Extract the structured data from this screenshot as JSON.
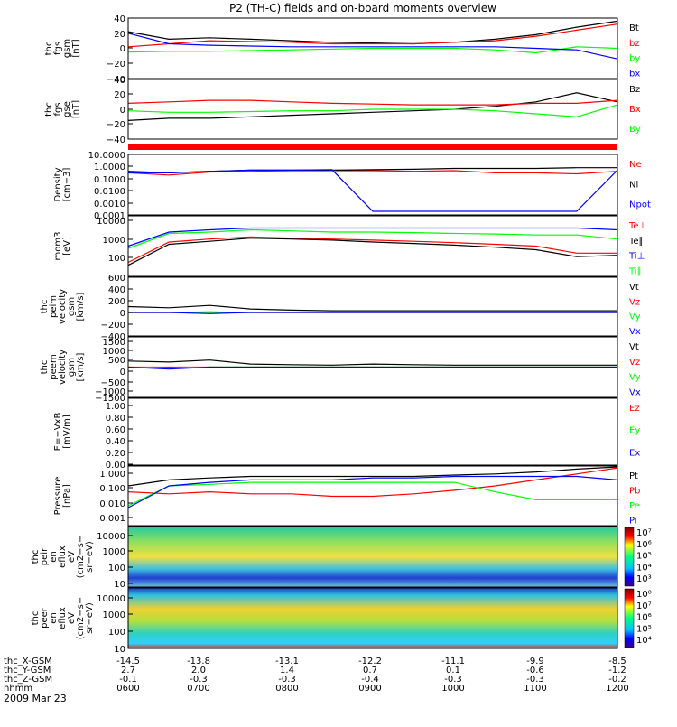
{
  "title": "P2 (TH-C) fields and on-board moments overview",
  "date_label": "2009 Mar 23",
  "footer": {
    "rows": [
      {
        "label": "thc_X-GSM",
        "values": [
          "-14.5",
          "-13.8",
          "-13.1",
          "-12.2",
          "-11.1",
          "-9.9",
          "-8.5"
        ]
      },
      {
        "label": "thc_Y-GSM",
        "values": [
          "2.7",
          "2.0",
          "1.4",
          "0.7",
          "0.1",
          "-0.6",
          "-1.2"
        ]
      },
      {
        "label": "thc_Z-GSM",
        "values": [
          "-0.1",
          "-0.3",
          "-0.3",
          "-0.4",
          "-0.3",
          "-0.3",
          "-0.2"
        ]
      },
      {
        "label": "hhmm",
        "values": [
          "0600",
          "0700",
          "0800",
          "0900",
          "1000",
          "1100",
          "1200"
        ]
      }
    ]
  },
  "colors": {
    "black": "#000000",
    "red": "#ff0000",
    "green": "#00ff00",
    "blue": "#0000ff",
    "flag_bar": "#ff0000"
  },
  "chart_data": [
    {
      "type": "line",
      "ylabel": [
        "thc",
        "fgs",
        "gsm",
        "[nT]"
      ],
      "yticks": [
        "40",
        "20",
        "0",
        "−20",
        "−40"
      ],
      "ylim": [
        -40,
        40
      ],
      "x": [
        "0600",
        "0630",
        "0700",
        "0730",
        "0800",
        "0830",
        "0900",
        "0930",
        "1000",
        "1030",
        "1100",
        "1130",
        "1200"
      ],
      "series": [
        {
          "name": "Bt",
          "color": "black",
          "values": [
            22,
            12,
            14,
            12,
            10,
            8,
            7,
            6,
            8,
            12,
            18,
            28,
            36
          ]
        },
        {
          "name": "bz",
          "color": "red",
          "values": [
            2,
            6,
            10,
            9,
            8,
            6,
            6,
            6,
            8,
            10,
            16,
            24,
            32
          ]
        },
        {
          "name": "by",
          "color": "green",
          "values": [
            -5,
            -4,
            -4,
            -3,
            -2,
            -1,
            0,
            0,
            0,
            -2,
            -6,
            2,
            0
          ]
        },
        {
          "name": "bx",
          "color": "blue",
          "values": [
            20,
            6,
            4,
            3,
            2,
            2,
            2,
            2,
            2,
            2,
            0,
            -2,
            -14
          ]
        }
      ]
    },
    {
      "type": "line",
      "ylabel": [
        "thc",
        "fgs",
        "gse",
        "[nT]"
      ],
      "yticks": [
        "40",
        "20",
        "0",
        "−20",
        "−40"
      ],
      "ylim": [
        -40,
        40
      ],
      "x": [
        "0600",
        "0630",
        "0700",
        "0730",
        "0800",
        "0830",
        "0900",
        "0930",
        "1000",
        "1030",
        "1100",
        "1130",
        "1200"
      ],
      "series": [
        {
          "name": "Bz",
          "color": "black",
          "values": [
            -15,
            -12,
            -12,
            -10,
            -8,
            -6,
            -4,
            -2,
            0,
            4,
            10,
            22,
            10
          ]
        },
        {
          "name": "Bx",
          "color": "red",
          "values": [
            8,
            10,
            12,
            12,
            10,
            8,
            7,
            6,
            6,
            6,
            8,
            8,
            12
          ]
        },
        {
          "name": "By",
          "color": "green",
          "values": [
            -2,
            -4,
            -4,
            -3,
            -2,
            -2,
            0,
            0,
            0,
            -2,
            -6,
            -10,
            6
          ]
        }
      ]
    },
    {
      "type": "line",
      "log": true,
      "ylabel": [
        "Density",
        "[cm−3]"
      ],
      "yticks": [
        "10.0000",
        "1.0000",
        "0.1000",
        "0.0100",
        "0.0010",
        "0.0001"
      ],
      "ylim": [
        0.0001,
        10
      ],
      "x": [
        "0600",
        "0630",
        "0700",
        "0730",
        "0800",
        "0830",
        "0900",
        "0930",
        "1000",
        "1030",
        "1100",
        "1130",
        "1200"
      ],
      "series": [
        {
          "name": "Ne",
          "color": "red",
          "values": [
            0.3,
            0.2,
            0.35,
            0.4,
            0.45,
            0.45,
            0.45,
            0.4,
            0.45,
            0.3,
            0.3,
            0.25,
            0.4
          ]
        },
        {
          "name": "Ni",
          "color": "black",
          "values": [
            0.4,
            0.3,
            0.4,
            0.5,
            0.5,
            0.5,
            0.55,
            0.6,
            0.7,
            0.7,
            0.7,
            0.8,
            0.8
          ]
        },
        {
          "name": "Npot",
          "color": "blue",
          "values": [
            0.3,
            0.3,
            0.4,
            0.5,
            0.5,
            0.55,
            0.0002,
            0.0002,
            0.0002,
            0.0002,
            0.0002,
            0.0002,
            0.5
          ]
        }
      ]
    },
    {
      "type": "line",
      "log": true,
      "ylabel": [
        "mom3",
        "[eV]"
      ],
      "yticks": [
        "10000",
        "1000",
        "100"
      ],
      "ylim": [
        50,
        20000
      ],
      "x": [
        "0600",
        "0630",
        "0700",
        "0730",
        "0800",
        "0830",
        "0900",
        "0930",
        "1000",
        "1030",
        "1100",
        "1130",
        "1200"
      ],
      "series": [
        {
          "name": "Te⊥",
          "color": "red",
          "values": [
            200,
            1500,
            2000,
            2500,
            2200,
            2000,
            1800,
            1600,
            1400,
            1200,
            1000,
            500,
            500
          ]
        },
        {
          "name": "Te∥",
          "color": "black",
          "values": [
            150,
            1200,
            1600,
            2200,
            2000,
            1800,
            1500,
            1300,
            1100,
            900,
            700,
            350,
            400
          ]
        },
        {
          "name": "Ti⊥",
          "color": "blue",
          "values": [
            1000,
            4000,
            5000,
            6000,
            6000,
            6000,
            6000,
            6000,
            6000,
            6000,
            6000,
            6000,
            5000
          ]
        },
        {
          "name": "Ti∥",
          "color": "green",
          "values": [
            800,
            3500,
            4000,
            5000,
            4500,
            4000,
            4000,
            3800,
            3500,
            3300,
            3000,
            3000,
            2000
          ]
        }
      ]
    },
    {
      "type": "line",
      "ylabel": [
        "thc",
        "peim",
        "velocity",
        "gsm",
        "[km/s]"
      ],
      "yticks": [
        "600",
        "400",
        "200",
        "0",
        "−200",
        "−400"
      ],
      "ylim": [
        -400,
        600
      ],
      "x": [
        "0600",
        "0630",
        "0700",
        "0730",
        "0800",
        "0830",
        "0900",
        "0930",
        "1000",
        "1030",
        "1100",
        "1130",
        "1200"
      ],
      "series": [
        {
          "name": "Vt",
          "color": "black",
          "values": [
            100,
            80,
            120,
            60,
            40,
            30,
            30,
            30,
            30,
            30,
            30,
            30,
            30
          ]
        },
        {
          "name": "Vz",
          "color": "red",
          "values": [
            0,
            0,
            10,
            0,
            0,
            0,
            0,
            0,
            0,
            0,
            0,
            0,
            0
          ]
        },
        {
          "name": "Vy",
          "color": "green",
          "values": [
            0,
            0,
            0,
            0,
            0,
            0,
            0,
            0,
            0,
            0,
            0,
            0,
            0
          ]
        },
        {
          "name": "Vx",
          "color": "blue",
          "values": [
            0,
            0,
            -20,
            0,
            0,
            0,
            0,
            0,
            0,
            0,
            0,
            0,
            0
          ]
        }
      ]
    },
    {
      "type": "line",
      "ylabel": [
        "thc",
        "peem",
        "velocity",
        "gsm",
        "[km/s]"
      ],
      "yticks": [
        "1500",
        "1000",
        "500",
        "0",
        "−500",
        "−1000",
        "−1500"
      ],
      "ylim": [
        -1500,
        1500
      ],
      "x": [
        "0600",
        "0630",
        "0700",
        "0730",
        "0800",
        "0830",
        "0900",
        "0930",
        "1000",
        "1030",
        "1100",
        "1130",
        "1200"
      ],
      "series": [
        {
          "name": "Vt",
          "color": "black",
          "values": [
            300,
            250,
            350,
            150,
            120,
            100,
            150,
            120,
            100,
            100,
            100,
            100,
            100
          ]
        },
        {
          "name": "Vz",
          "color": "red",
          "values": [
            0,
            0,
            0,
            0,
            0,
            0,
            0,
            0,
            0,
            0,
            0,
            0,
            0
          ]
        },
        {
          "name": "Vy",
          "color": "green",
          "values": [
            0,
            -50,
            0,
            0,
            0,
            0,
            0,
            0,
            0,
            0,
            0,
            0,
            0
          ]
        },
        {
          "name": "Vx",
          "color": "blue",
          "values": [
            0,
            -100,
            0,
            0,
            0,
            0,
            0,
            0,
            0,
            0,
            0,
            0,
            0
          ]
        }
      ]
    },
    {
      "type": "line",
      "ylabel": [
        "E=−VxB",
        "[mV/m]"
      ],
      "yticks": [
        "1.00",
        "0.80",
        "0.60",
        "0.40",
        "0.20",
        "0.00"
      ],
      "ylim": [
        0,
        1
      ],
      "x": [],
      "series": [
        {
          "name": "Ez",
          "color": "red",
          "values": []
        },
        {
          "name": "Ey",
          "color": "green",
          "values": []
        },
        {
          "name": "Ex",
          "color": "blue",
          "values": []
        }
      ]
    },
    {
      "type": "line",
      "log": true,
      "ylabel": [
        "Pressure",
        "[nPa]"
      ],
      "yticks": [
        "1.000",
        "0.100",
        "0.010",
        "0.001"
      ],
      "ylim": [
        0.001,
        1
      ],
      "x": [
        "0600",
        "0630",
        "0700",
        "0730",
        "0800",
        "0830",
        "0900",
        "0930",
        "1000",
        "1030",
        "1100",
        "1130",
        "1200"
      ],
      "series": [
        {
          "name": "Pt",
          "color": "black",
          "values": [
            0.1,
            0.2,
            0.25,
            0.3,
            0.3,
            0.3,
            0.3,
            0.3,
            0.35,
            0.4,
            0.5,
            0.7,
            0.9
          ]
        },
        {
          "name": "Pb",
          "color": "red",
          "values": [
            0.05,
            0.04,
            0.05,
            0.04,
            0.04,
            0.03,
            0.03,
            0.04,
            0.06,
            0.1,
            0.2,
            0.4,
            0.8
          ]
        },
        {
          "name": "Pe",
          "color": "green",
          "values": [
            0.01,
            0.1,
            0.12,
            0.15,
            0.15,
            0.15,
            0.15,
            0.15,
            0.15,
            0.05,
            0.02,
            0.02,
            0.02
          ]
        },
        {
          "name": "Pi",
          "color": "blue",
          "values": [
            0.008,
            0.1,
            0.15,
            0.2,
            0.2,
            0.2,
            0.25,
            0.25,
            0.3,
            0.3,
            0.3,
            0.3,
            0.2
          ]
        }
      ]
    },
    {
      "type": "heatmap",
      "ylabel": [
        "thc",
        "peir",
        "en",
        "eflux",
        "eV",
        "(cm2−s−",
        "sr−eV)"
      ],
      "yticks": [
        "10000",
        "1000",
        "100",
        "10"
      ],
      "colorbar": [
        "10⁷",
        "10⁶",
        "10⁵",
        "10⁴",
        "10³"
      ]
    },
    {
      "type": "heatmap",
      "ylabel": [
        "thc",
        "peer",
        "en",
        "eflux",
        "eV",
        "(cm2−s−",
        "sr−eV)"
      ],
      "yticks": [
        "10000",
        "1000",
        "100",
        "10"
      ],
      "colorbar": [
        "10⁸",
        "10⁷",
        "10⁶",
        "10⁵",
        "10⁴"
      ]
    }
  ]
}
